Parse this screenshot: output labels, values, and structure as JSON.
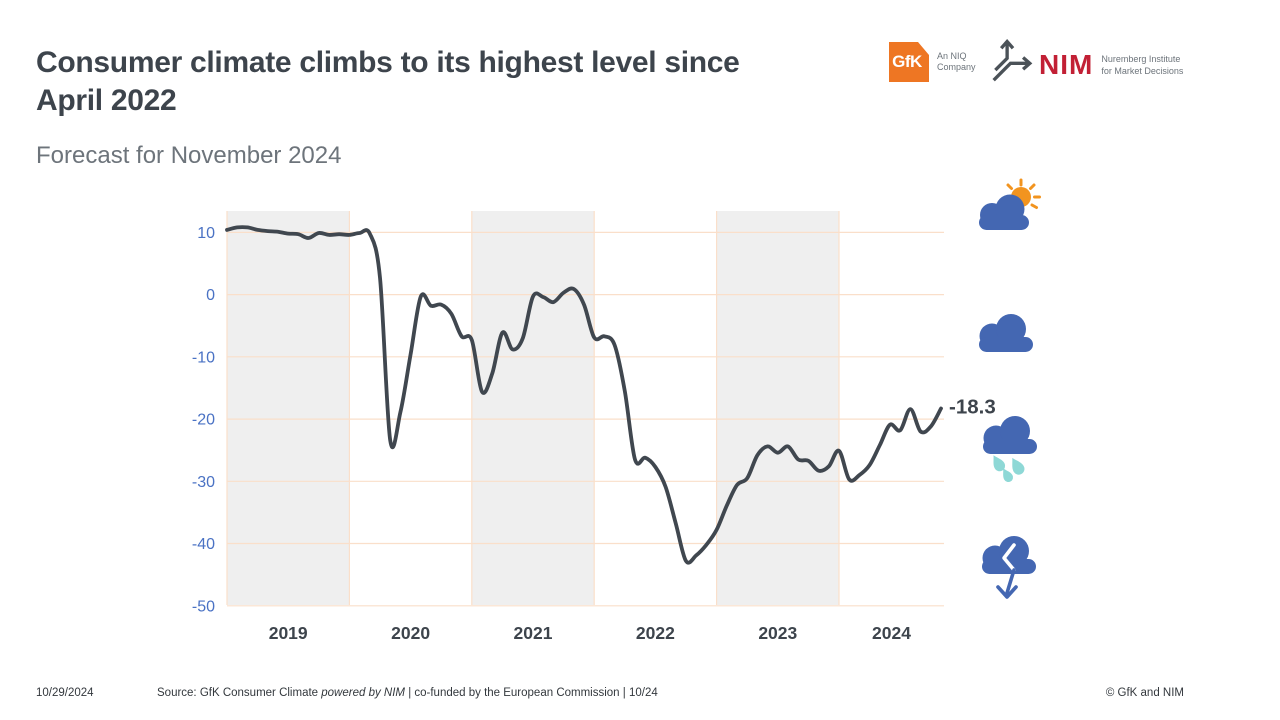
{
  "colors": {
    "band": "#efefef",
    "grid": "#fadfca",
    "axis": "#4a72c4",
    "line": "#40474f",
    "text_dark": "#3d444c",
    "text_gray": "#6d747b",
    "cloud_blue": "#4467b2",
    "sun_orange": "#f2941f",
    "drop_teal": "#8ed8d6",
    "gfk_orange": "#ee7623",
    "nim_red": "#c22035",
    "nim_gray": "#4b5258"
  },
  "header": {
    "title_line1": "Consumer climate climbs to its highest level since",
    "title_line2": "April 2022",
    "subtitle": "Forecast for November 2024"
  },
  "logos": {
    "gfk": {
      "text": "GfK",
      "tagline_line1": "An NIQ",
      "tagline_line2": "Company"
    },
    "nim": {
      "text": "NIM",
      "tagline_line1": "Nuremberg Institute",
      "tagline_line2": "for Market Decisions"
    }
  },
  "chart_data": {
    "type": "line",
    "x_start_month": "2019-01",
    "x_end_month": "2024-11",
    "x_tick_labels": [
      "2019",
      "2020",
      "2021",
      "2022",
      "2023",
      "2024"
    ],
    "y_ticks": [
      10,
      0,
      -10,
      -20,
      -30,
      -40,
      -50
    ],
    "ylim": [
      -50,
      13.4
    ],
    "grid": true,
    "legend_position": "none",
    "shaded_year_bands": [
      "2019",
      "2021",
      "2023"
    ],
    "end_label": "-18.3",
    "series": [
      {
        "name": "GfK Consumer Climate",
        "values": [
          10.4,
          10.8,
          10.8,
          10.4,
          10.2,
          10.1,
          9.8,
          9.7,
          9.1,
          9.9,
          9.6,
          9.7,
          9.6,
          9.9,
          9.8,
          2.7,
          -23.4,
          -18.9,
          -9.6,
          -0.3,
          -1.8,
          -1.6,
          -3.1,
          -6.7,
          -7.3,
          -15.6,
          -12.7,
          -6.1,
          -8.8,
          -7.0,
          -0.3,
          -0.4,
          -1.2,
          0.3,
          0.9,
          -1.6,
          -6.9,
          -6.7,
          -8.1,
          -15.5,
          -26.5,
          -26.2,
          -27.7,
          -30.9,
          -36.8,
          -42.8,
          -41.9,
          -40.2,
          -37.8,
          -33.9,
          -30.6,
          -29.5,
          -25.8,
          -24.4,
          -25.4,
          -24.4,
          -26.5,
          -26.7,
          -28.3,
          -27.6,
          -25.1,
          -29.7,
          -29.0,
          -27.4,
          -24.2,
          -20.9,
          -21.8,
          -18.4,
          -22.0,
          -21.2,
          -18.3
        ]
      }
    ]
  },
  "weather_icons": [
    {
      "name": "cloud-sun-icon"
    },
    {
      "name": "cloud-icon"
    },
    {
      "name": "cloud-rain-icon"
    },
    {
      "name": "cloud-falling-arrow-icon"
    }
  ],
  "footer": {
    "date": "10/29/2024",
    "source_prefix": "Source: GfK Consumer Climate ",
    "source_italic": "powered by NIM",
    "source_suffix": " | co-funded by the European Commission | 10/24",
    "copyright": "© GfK and NIM"
  }
}
